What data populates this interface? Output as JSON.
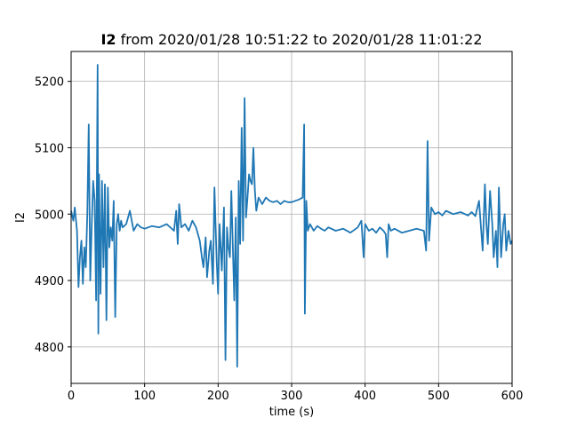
{
  "chart_data": {
    "type": "line",
    "title_bold": "I2",
    "title_rest": " from 2020/01/28 10:51:22 to 2020/01/28 11:01:22",
    "xlabel": "time (s)",
    "ylabel": "I2",
    "xlim": [
      0,
      600
    ],
    "ylim": [
      4745,
      5245
    ],
    "xticks": [
      0,
      100,
      200,
      300,
      400,
      500,
      600
    ],
    "yticks": [
      4800,
      4900,
      5000,
      5100,
      5200
    ],
    "grid": true,
    "line_color": "#1f77b4",
    "series": [
      {
        "x": [
          0,
          3,
          5,
          8,
          10,
          12,
          14,
          16,
          18,
          20,
          22,
          24,
          26,
          28,
          30,
          32,
          34,
          36,
          37,
          38,
          40,
          42,
          44,
          46,
          48,
          50,
          52,
          54,
          56,
          58,
          60,
          62,
          64,
          66,
          68,
          70,
          75,
          80,
          85,
          90,
          95,
          100,
          110,
          120,
          130,
          140,
          143,
          145,
          147,
          150,
          155,
          160,
          165,
          170,
          175,
          178,
          180,
          183,
          185,
          188,
          190,
          193,
          195,
          198,
          200,
          202,
          205,
          208,
          210,
          212,
          214,
          216,
          218,
          220,
          222,
          224,
          226,
          228,
          230,
          232,
          234,
          236,
          238,
          240,
          242,
          244,
          246,
          248,
          250,
          252,
          255,
          260,
          265,
          270,
          275,
          280,
          285,
          290,
          295,
          300,
          305,
          310,
          315,
          317,
          318,
          319,
          320,
          322,
          325,
          330,
          335,
          340,
          345,
          350,
          360,
          370,
          380,
          390,
          395,
          398,
          400,
          405,
          410,
          415,
          420,
          425,
          428,
          430,
          432,
          435,
          440,
          450,
          460,
          470,
          480,
          483,
          485,
          487,
          490,
          495,
          500,
          505,
          510,
          520,
          530,
          540,
          545,
          550,
          555,
          560,
          563,
          565,
          567,
          570,
          573,
          575,
          578,
          580,
          582,
          585,
          588,
          590,
          592,
          595,
          598,
          600
        ],
        "y": [
          5005,
          4990,
          5010,
          4975,
          4890,
          4935,
          4960,
          4895,
          4950,
          4920,
          5000,
          5135,
          4900,
          4980,
          5050,
          5020,
          4870,
          5225,
          4820,
          5060,
          4880,
          5050,
          4920,
          5045,
          4840,
          5040,
          4950,
          4980,
          4960,
          5020,
          4845,
          4985,
          5000,
          4975,
          4990,
          4980,
          4985,
          5005,
          4975,
          4985,
          4980,
          4978,
          4982,
          4980,
          4985,
          4975,
          5005,
          4955,
          5015,
          4980,
          4985,
          4975,
          4990,
          4980,
          4960,
          4935,
          4920,
          4965,
          4905,
          4945,
          4960,
          4895,
          5040,
          4930,
          4880,
          4985,
          4915,
          5010,
          4780,
          4980,
          4950,
          4935,
          5035,
          4950,
          4870,
          4995,
          4770,
          5050,
          4955,
          5130,
          4960,
          5175,
          4995,
          5025,
          5060,
          5050,
          5045,
          5100,
          5035,
          5005,
          5025,
          5015,
          5025,
          5020,
          5018,
          5020,
          5015,
          5020,
          5018,
          5018,
          5020,
          5022,
          5025,
          5135,
          4850,
          4935,
          5020,
          4975,
          4985,
          4975,
          4982,
          4978,
          4975,
          4980,
          4975,
          4978,
          4972,
          4980,
          4990,
          4935,
          4985,
          4975,
          4978,
          4972,
          4980,
          4975,
          4970,
          4935,
          4985,
          4975,
          4978,
          4972,
          4975,
          4978,
          4975,
          4945,
          5110,
          4960,
          5010,
          5000,
          5003,
          4998,
          5005,
          5000,
          5003,
          4998,
          5003,
          4997,
          5020,
          4945,
          5045,
          4985,
          4955,
          5035,
          4985,
          4935,
          4975,
          4920,
          5040,
          4935,
          4985,
          5000,
          4945,
          4975,
          4955,
          4960
        ]
      }
    ]
  }
}
